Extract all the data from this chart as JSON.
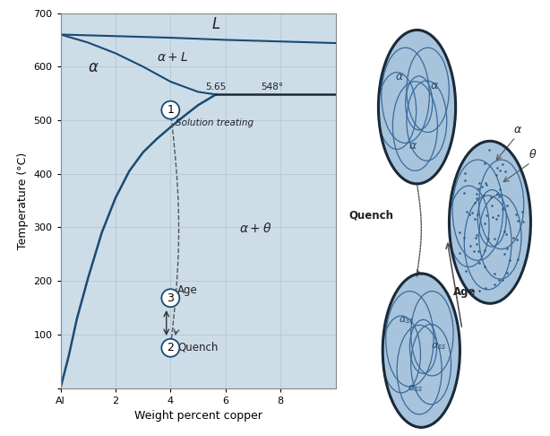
{
  "bg_color": "#ccdde8",
  "fig_bg_color": "#ffffff",
  "xlabel": "Weight percent copper",
  "ylabel": "Temperature (°C)",
  "xlim": [
    0,
    10
  ],
  "ylim": [
    0,
    700
  ],
  "yticks": [
    0,
    100,
    200,
    300,
    400,
    500,
    600,
    700
  ],
  "grid_color": "#aabbcc",
  "line_color": "#1a4a72",
  "circle_color": "#1a4a72",
  "dashed_color": "#555555",
  "microstructure_fill": "#a8c4dc",
  "microstructure_grain_line": "#3a6a9a",
  "microstructure_dot_color": "#2a5a8a",
  "microstructure_border": "#1a2a3a",
  "label_color": "#2a4a6a"
}
